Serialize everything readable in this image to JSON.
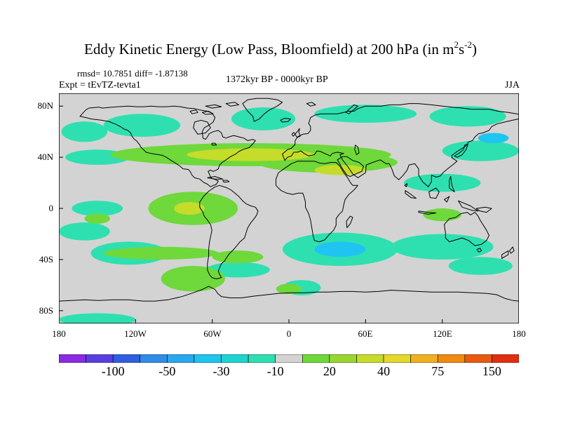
{
  "title": {
    "main": "Eddy Kinetic Energy (Low Pass, Bloomfield) at 200 hPa (in m",
    "sup1": "2",
    "mid": "s",
    "sup2": "-2",
    "close": ")"
  },
  "stats": "rmsd= 10.7851 diff= -1.87138",
  "experiment": "Expt = tEvTZ-tevta1",
  "period": "1372kyr BP - 0000kyr BP",
  "season": "JJA",
  "chart_data": {
    "type": "heatmap",
    "projection": "cylindrical-equidistant",
    "variable": "Eddy Kinetic Energy difference",
    "units": "m2 s-2",
    "lon_range": [
      -180,
      180
    ],
    "lat_range": [
      -90,
      90
    ],
    "lat_ticks": [
      {
        "value": 80,
        "label": "80N"
      },
      {
        "value": 40,
        "label": "40N"
      },
      {
        "value": 0,
        "label": "0"
      },
      {
        "value": -40,
        "label": "40S"
      },
      {
        "value": -80,
        "label": "80S"
      }
    ],
    "lon_ticks": [
      {
        "value": -180,
        "label": "180"
      },
      {
        "value": -120,
        "label": "120W"
      },
      {
        "value": -60,
        "label": "60W"
      },
      {
        "value": 0,
        "label": "0"
      },
      {
        "value": 60,
        "label": "60E"
      },
      {
        "value": 120,
        "label": "120E"
      },
      {
        "value": 180,
        "label": "180"
      }
    ],
    "colorbar": {
      "colors": [
        "#8a2be2",
        "#5a3fe0",
        "#2f5fe0",
        "#2f8ce8",
        "#2aa7ee",
        "#20c4f0",
        "#1fd4d0",
        "#2ee0b0",
        "#d3d3d3",
        "#6fd83a",
        "#9ad630",
        "#c6dc2a",
        "#e6d82a",
        "#f0b020",
        "#f08a10",
        "#e85a10",
        "#e03010"
      ],
      "labels": [
        {
          "label": "-100",
          "boundary": 2
        },
        {
          "label": "-50",
          "boundary": 4
        },
        {
          "label": "-30",
          "boundary": 6
        },
        {
          "label": "-10",
          "boundary": 8
        },
        {
          "label": "20",
          "boundary": 10
        },
        {
          "label": "40",
          "boundary": 12
        },
        {
          "label": "75",
          "boundary": 14
        },
        {
          "label": "150",
          "boundary": 16
        }
      ]
    },
    "anomalies": [
      {
        "lon": -115,
        "lat": 65,
        "value": -10,
        "rlon": 30,
        "rlat": 9
      },
      {
        "lon": -160,
        "lat": 60,
        "value": -10,
        "rlon": 18,
        "rlat": 8
      },
      {
        "lon": -20,
        "lat": 70,
        "value": -10,
        "rlon": 25,
        "rlat": 9
      },
      {
        "lon": 60,
        "lat": 74,
        "value": -10,
        "rlon": 40,
        "rlat": 7
      },
      {
        "lon": 140,
        "lat": 72,
        "value": -10,
        "rlon": 30,
        "rlat": 8
      },
      {
        "lon": -150,
        "lat": 40,
        "value": -10,
        "rlon": 25,
        "rlat": 6
      },
      {
        "lon": 150,
        "lat": 45,
        "value": -10,
        "rlon": 30,
        "rlat": 8
      },
      {
        "lon": 120,
        "lat": 20,
        "value": -10,
        "rlon": 30,
        "rlat": 7
      },
      {
        "lon": -150,
        "lat": 0,
        "value": -10,
        "rlon": 20,
        "rlat": 6
      },
      {
        "lon": -160,
        "lat": -18,
        "value": -10,
        "rlon": 20,
        "rlat": 7
      },
      {
        "lon": -125,
        "lat": -35,
        "value": -10,
        "rlon": 30,
        "rlat": 9
      },
      {
        "lon": -40,
        "lat": -48,
        "value": -10,
        "rlon": 25,
        "rlat": 6
      },
      {
        "lon": 10,
        "lat": -62,
        "value": -10,
        "rlon": 15,
        "rlat": 6
      },
      {
        "lon": 40,
        "lat": -32,
        "value": -10,
        "rlon": 45,
        "rlat": 13
      },
      {
        "lon": 40,
        "lat": -32,
        "value": -30,
        "rlon": 20,
        "rlat": 6
      },
      {
        "lon": 120,
        "lat": -30,
        "value": -10,
        "rlon": 40,
        "rlat": 10
      },
      {
        "lon": 150,
        "lat": -45,
        "value": -10,
        "rlon": 25,
        "rlat": 7
      },
      {
        "lon": 160,
        "lat": 55,
        "value": -30,
        "rlon": 12,
        "rlat": 4
      },
      {
        "lon": -150,
        "lat": -87,
        "value": -10,
        "rlon": 30,
        "rlat": 5
      },
      {
        "lon": -30,
        "lat": 42,
        "value": 10,
        "rlon": 110,
        "rlat": 9
      },
      {
        "lon": 30,
        "lat": 36,
        "value": 10,
        "rlon": 55,
        "rlat": 8
      },
      {
        "lon": -30,
        "lat": 42,
        "value": 20,
        "rlon": 50,
        "rlat": 5
      },
      {
        "lon": 40,
        "lat": 30,
        "value": 20,
        "rlon": 20,
        "rlat": 4
      },
      {
        "lon": -75,
        "lat": 0,
        "value": 10,
        "rlon": 35,
        "rlat": 13
      },
      {
        "lon": -78,
        "lat": 0,
        "value": 20,
        "rlon": 12,
        "rlat": 5
      },
      {
        "lon": -100,
        "lat": -35,
        "value": 10,
        "rlon": 45,
        "rlat": 5
      },
      {
        "lon": -40,
        "lat": -38,
        "value": 10,
        "rlon": 20,
        "rlat": 5
      },
      {
        "lon": -75,
        "lat": -55,
        "value": 10,
        "rlon": 25,
        "rlat": 10
      },
      {
        "lon": 0,
        "lat": -63,
        "value": 10,
        "rlon": 10,
        "rlat": 4
      },
      {
        "lon": 120,
        "lat": -5,
        "value": 10,
        "rlon": 15,
        "rlat": 5
      },
      {
        "lon": -150,
        "lat": -8,
        "value": 10,
        "rlon": 10,
        "rlat": 4
      }
    ]
  }
}
